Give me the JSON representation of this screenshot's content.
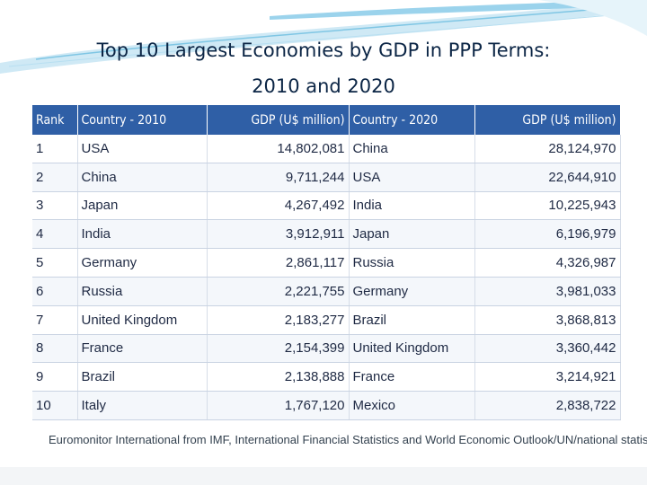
{
  "title": {
    "line1": "Top 10 Largest  Economies by GDP in PPP Terms:",
    "line2": "2010 and 2020"
  },
  "table": {
    "headers": [
      "Rank",
      "Country - 2010",
      "GDP (U$ million)",
      "Country - 2020",
      "GDP (U$ million)"
    ],
    "rows": [
      [
        "1",
        "USA",
        "14,802,081",
        "China",
        "28,124,970"
      ],
      [
        "2",
        "China",
        "9,711,244",
        "USA",
        "22,644,910"
      ],
      [
        "3",
        "Japan",
        "4,267,492",
        "India",
        "10,225,943"
      ],
      [
        "4",
        "India",
        "3,912,911",
        "Japan",
        "6,196,979"
      ],
      [
        "5",
        "Germany",
        "2,861,117",
        "Russia",
        "4,326,987"
      ],
      [
        "6",
        "Russia",
        "2,221,755",
        "Germany",
        "3,981,033"
      ],
      [
        "7",
        "United Kingdom",
        "2,183,277",
        "Brazil",
        "3,868,813"
      ],
      [
        "8",
        "France",
        "2,154,399",
        "United Kingdom",
        "3,360,442"
      ],
      [
        "9",
        "Brazil",
        "2,138,888",
        "France",
        "3,214,921"
      ],
      [
        "10",
        "Italy",
        "1,767,120",
        "Mexico",
        "2,838,722"
      ]
    ]
  },
  "source": "Euromonitor International from IMF, International Financial Statistics and World Economic Outlook/UN/national statistics",
  "colors": {
    "header_bg": "#2f5fa6",
    "title_text": "#0b2545",
    "accent_swoosh": "#7fc6e4"
  }
}
